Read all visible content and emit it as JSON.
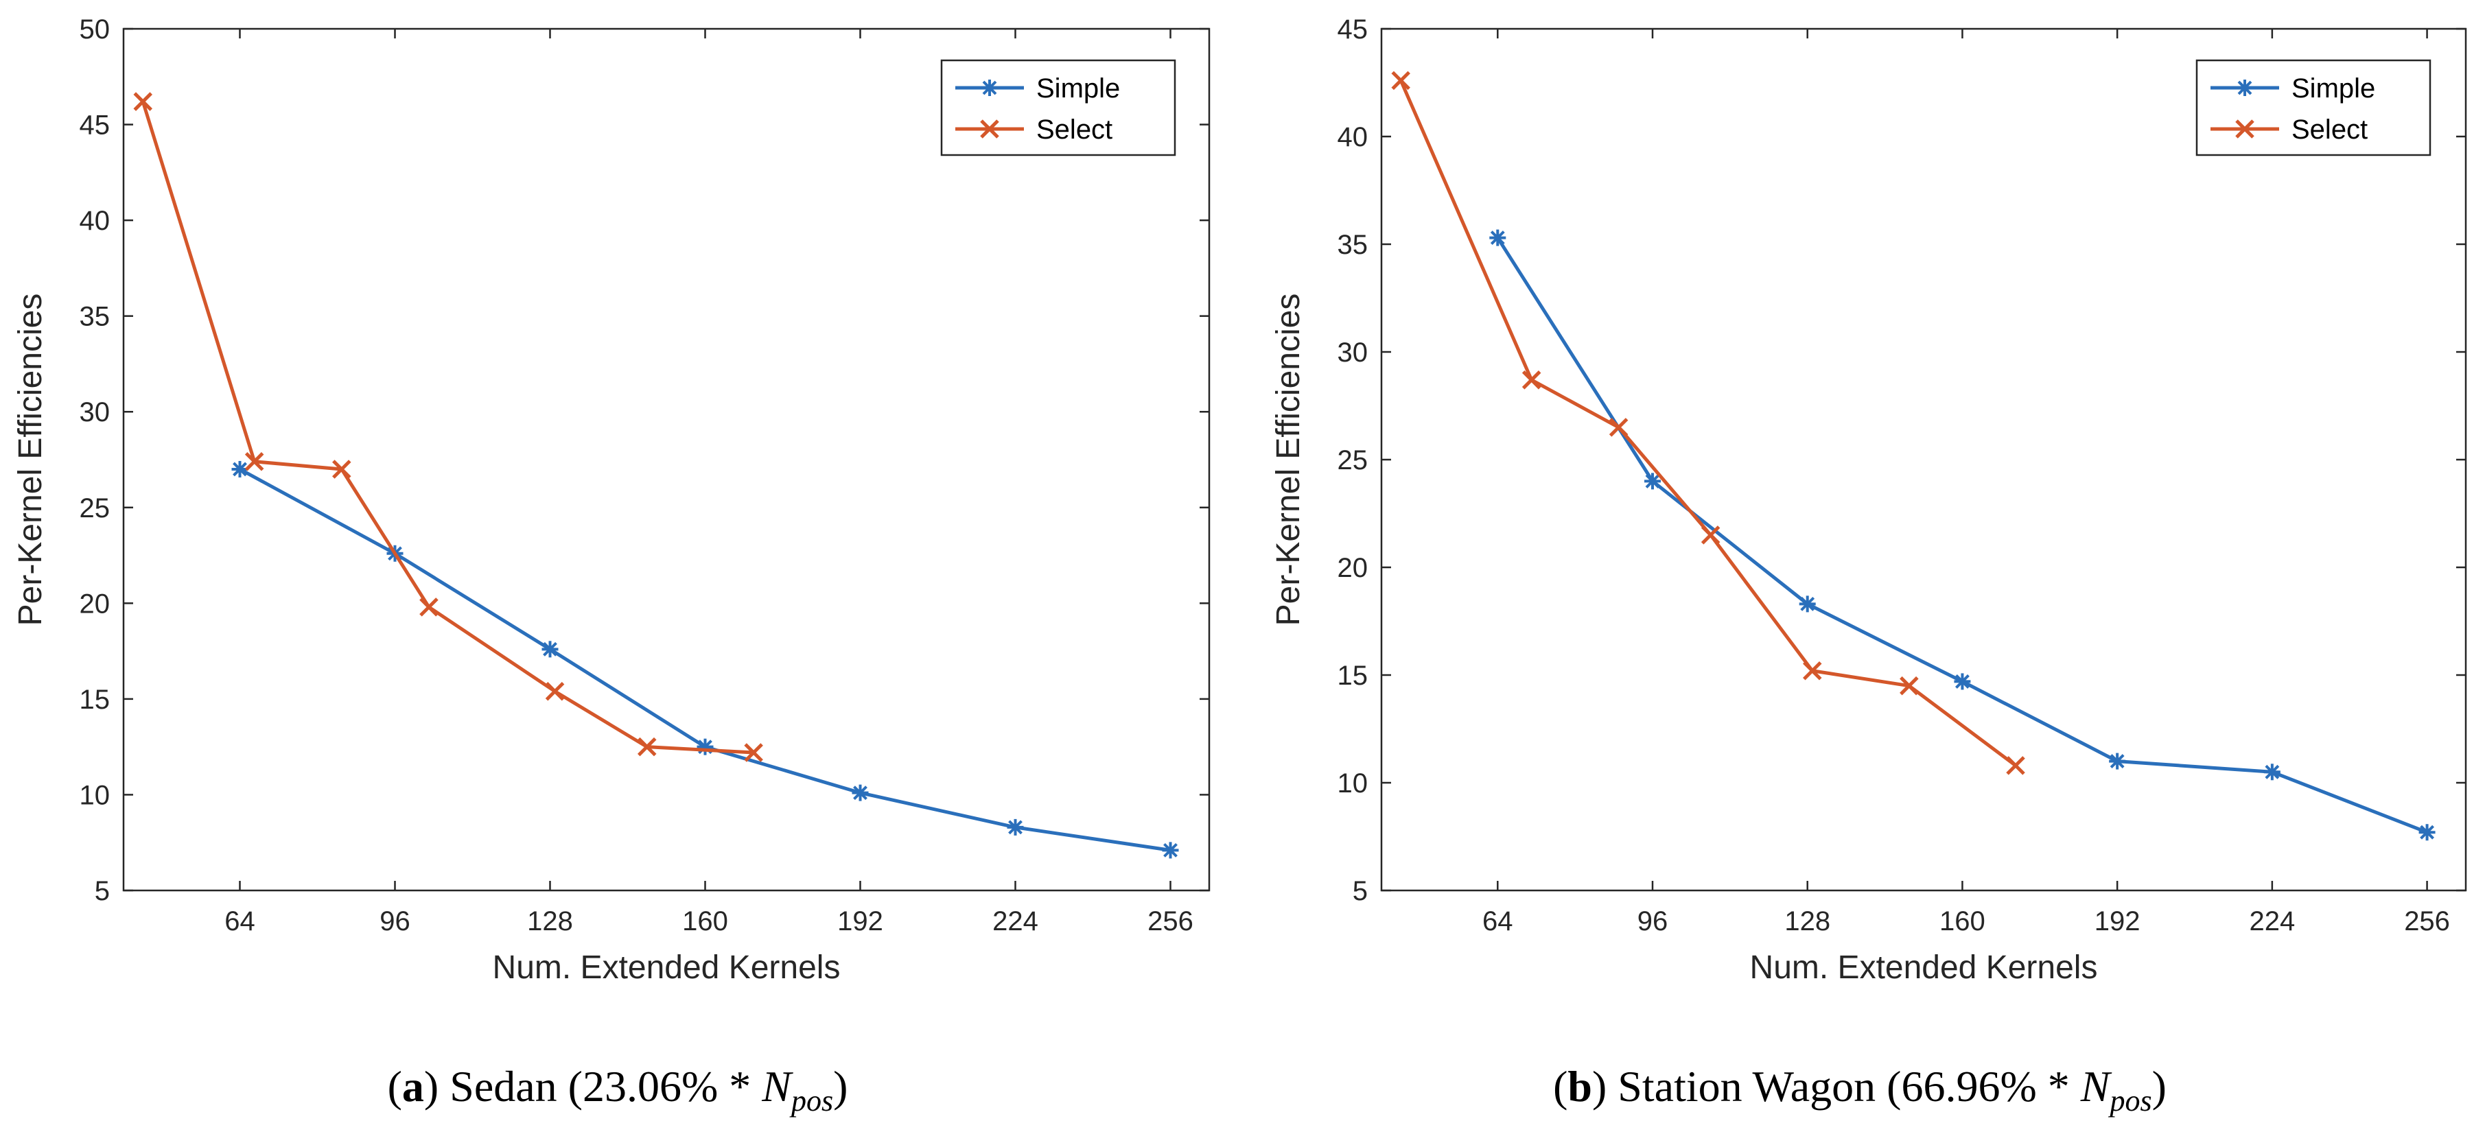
{
  "colors": {
    "simple": "#2a6fbb",
    "select": "#d4572a",
    "axis": "#262626"
  },
  "chart_data": [
    {
      "type": "line",
      "xlabel": "Num. Extended Kernels",
      "ylabel": "Per-Kernel Efficiencies",
      "xlim": [
        40,
        264
      ],
      "ylim": [
        5,
        50
      ],
      "xticks": [
        64,
        96,
        128,
        160,
        192,
        224,
        256
      ],
      "yticks": [
        5,
        10,
        15,
        20,
        25,
        30,
        35,
        40,
        45,
        50
      ],
      "legend_position": "top-right",
      "caption": {
        "label": "a",
        "name": "Sedan",
        "percent": "(23.06% * ",
        "symbol": "N",
        "subscript": "pos",
        "close": ")"
      },
      "series": [
        {
          "name": "Simple",
          "marker": "asterisk",
          "x": [
            64,
            96,
            128,
            160,
            192,
            224,
            256
          ],
          "y": [
            27.0,
            22.6,
            17.6,
            12.5,
            10.1,
            8.3,
            7.1
          ]
        },
        {
          "name": "Select",
          "marker": "x",
          "x": [
            44,
            67,
            85,
            103,
            129,
            148,
            170
          ],
          "y": [
            46.2,
            27.4,
            27.0,
            19.8,
            15.4,
            12.5,
            12.2
          ]
        }
      ]
    },
    {
      "type": "line",
      "xlabel": "Num. Extended Kernels",
      "ylabel": "Per-Kernel Efficiencies",
      "xlim": [
        40,
        264
      ],
      "ylim": [
        5,
        45
      ],
      "xticks": [
        64,
        96,
        128,
        160,
        192,
        224,
        256
      ],
      "yticks": [
        5,
        10,
        15,
        20,
        25,
        30,
        35,
        40,
        45
      ],
      "legend_position": "top-right",
      "caption": {
        "label": "b",
        "name": "Station Wagon",
        "percent": "(66.96% * ",
        "symbol": "N",
        "subscript": "pos",
        "close": ")"
      },
      "series": [
        {
          "name": "Simple",
          "marker": "asterisk",
          "x": [
            64,
            96,
            128,
            160,
            192,
            224,
            256
          ],
          "y": [
            35.3,
            24.0,
            18.3,
            14.7,
            11.0,
            10.5,
            7.7
          ]
        },
        {
          "name": "Select",
          "marker": "x",
          "x": [
            44,
            71,
            89,
            108,
            129,
            149,
            171
          ],
          "y": [
            42.6,
            28.7,
            26.5,
            21.5,
            15.2,
            14.5,
            10.8
          ]
        }
      ]
    }
  ]
}
